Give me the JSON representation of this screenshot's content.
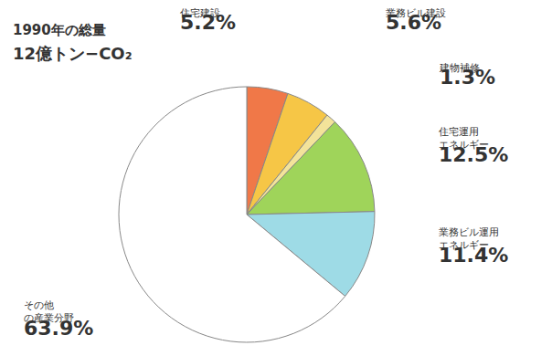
{
  "chart_data": {
    "type": "pie",
    "title": "1990年の総量",
    "subtitle": "12億トン−CO₂",
    "categories": [
      "住宅建設",
      "業務ビル建設",
      "建物補修",
      "住宅運用エネルギー",
      "業務ビル運用エネルギー",
      "その他の産業分野"
    ],
    "values": [
      5.2,
      5.6,
      1.3,
      12.5,
      11.4,
      63.9
    ],
    "value_labels": [
      "5.2%",
      "5.6%",
      "1.3%",
      "12.5%",
      "11.4%",
      "63.9%"
    ],
    "colors": [
      "#f07848",
      "#f6c646",
      "#f3e39a",
      "#9fd45a",
      "#9edbe6",
      "#ffffff"
    ],
    "data_labels": true
  }
}
